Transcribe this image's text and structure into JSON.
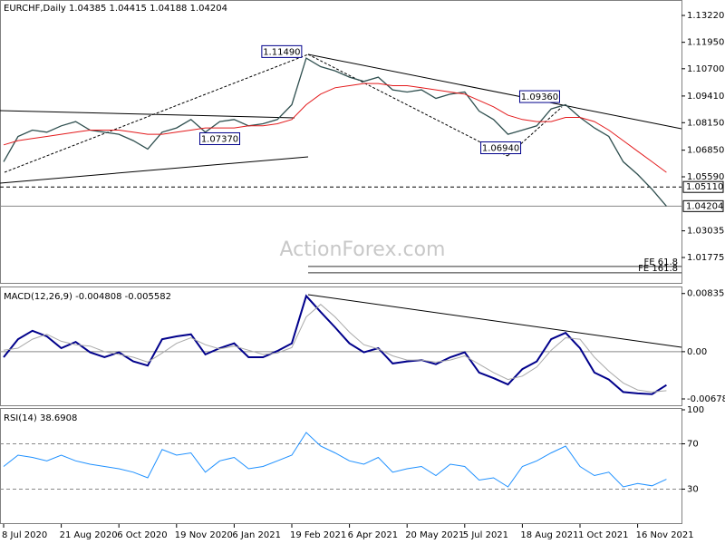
{
  "chart_data": [
    {
      "type": "line",
      "title": "EURCHF,Daily  1.04385 1.04415 1.04188 1.04204",
      "series": [
        {
          "color": "#2f4f4f",
          "values": [
            1.063,
            1.075,
            1.078,
            1.077,
            1.08,
            1.082,
            1.078,
            1.077,
            1.076,
            1.073,
            1.069,
            1.077,
            1.079,
            1.083,
            1.077,
            1.082,
            1.083,
            1.08,
            1.081,
            1.083,
            1.09,
            1.112,
            1.108,
            1.106,
            1.103,
            1.101,
            1.103,
            1.097,
            1.096,
            1.097,
            1.093,
            1.095,
            1.096,
            1.087,
            1.083,
            1.076,
            1.078,
            1.08,
            1.088,
            1.09,
            1.084,
            1.079,
            1.075,
            1.063,
            1.057,
            1.05,
            1.042
          ]
        },
        {
          "color": "#e31a1c",
          "values": [
            1.071,
            1.073,
            1.074,
            1.075,
            1.076,
            1.077,
            1.078,
            1.078,
            1.078,
            1.077,
            1.076,
            1.076,
            1.077,
            1.078,
            1.079,
            1.079,
            1.079,
            1.08,
            1.08,
            1.081,
            1.083,
            1.09,
            1.095,
            1.098,
            1.099,
            1.1,
            1.1,
            1.099,
            1.099,
            1.098,
            1.097,
            1.096,
            1.095,
            1.092,
            1.089,
            1.085,
            1.083,
            1.082,
            1.082,
            1.084,
            1.084,
            1.082,
            1.078,
            1.073,
            1.068,
            1.063,
            1.058
          ]
        }
      ],
      "ylim": [
        1.0066,
        1.1395
      ],
      "yticks": [
        {
          "value": 1.1322,
          "label": "1.13220"
        },
        {
          "value": 1.1195,
          "label": "1.11950"
        },
        {
          "value": 1.107,
          "label": "1.10700"
        },
        {
          "value": 1.0941,
          "label": "1.09410"
        },
        {
          "value": 1.0815,
          "label": "1.08150"
        },
        {
          "value": 1.0685,
          "label": "1.06850"
        },
        {
          "value": 1.0559,
          "label": "1.05590"
        },
        {
          "value": 1.03035,
          "label": "1.03035"
        },
        {
          "value": 1.01775,
          "label": "1.01775"
        }
      ],
      "grid": false,
      "hlines": [
        {
          "value": 1.0511,
          "label": "1.05110"
        },
        {
          "value": 1.04204,
          "label": "1.04204"
        }
      ],
      "fe_levels": [
        {
          "value": 1.0135,
          "label": "FE 61.8"
        },
        {
          "value": 1.0105,
          "label": "FE 161.8"
        }
      ],
      "annotations": [
        {
          "text": "1.11490",
          "x": 19.3,
          "y": 1.1149
        },
        {
          "text": "1.07370",
          "x": 15.0,
          "y": 1.0737
        },
        {
          "text": "1.06940",
          "x": 34.5,
          "y": 1.0694
        },
        {
          "text": "1.09360",
          "x": 37.2,
          "y": 1.0936
        }
      ],
      "watermark": "ActionForex.com"
    },
    {
      "type": "line",
      "title": "MACD(12,26,9) -0.004808 -0.005582",
      "series": [
        {
          "color": "#00008b",
          "values": [
            -0.0008,
            0.0018,
            0.003,
            0.0022,
            0.0005,
            0.0014,
            -0.0001,
            -0.0008,
            -0.0001,
            -0.0014,
            -0.002,
            0.0018,
            0.0022,
            0.0025,
            -0.0004,
            0.0005,
            0.0012,
            -0.0008,
            -0.0008,
            0.0001,
            0.0012,
            0.008,
            0.0057,
            0.0035,
            0.0012,
            -0.0001,
            0.0005,
            -0.0017,
            -0.0014,
            -0.0012,
            -0.0018,
            -0.0008,
            -0.0001,
            -0.003,
            -0.0038,
            -0.0047,
            -0.0025,
            -0.0014,
            0.0018,
            0.0027,
            0.0005,
            -0.003,
            -0.004,
            -0.0058,
            -0.006,
            -0.0061,
            -0.0048
          ]
        },
        {
          "color": "#a9a9a9",
          "values": [
            0.0002,
            0.0005,
            0.0018,
            0.0025,
            0.0015,
            0.001,
            0.0008,
            0.0,
            -0.0004,
            -0.0008,
            -0.0015,
            -0.0002,
            0.0012,
            0.002,
            0.001,
            0.0004,
            0.0008,
            0.0002,
            -0.0004,
            -0.0002,
            0.0006,
            0.005,
            0.0068,
            0.005,
            0.0028,
            0.001,
            0.0004,
            -0.0006,
            -0.0012,
            -0.0012,
            -0.0015,
            -0.0012,
            -0.0006,
            -0.0018,
            -0.003,
            -0.004,
            -0.0035,
            -0.0022,
            0.0002,
            0.002,
            0.0018,
            -0.0008,
            -0.0028,
            -0.0045,
            -0.0055,
            -0.0058,
            -0.0056
          ]
        }
      ],
      "ylim": [
        -0.0077,
        0.0091
      ],
      "yticks": [
        0.008353,
        {
          "value": 0,
          "label": "0.00"
        },
        -0.006788
      ],
      "grid": true
    },
    {
      "type": "line",
      "title": "RSI(14) 38.6908",
      "categories": [
        "8 Jul 2020",
        null,
        null,
        null,
        "21 Aug 2020",
        null,
        null,
        null,
        "6 Oct 2020",
        null,
        null,
        null,
        "19 Nov 2020",
        null,
        null,
        null,
        "6 Jan 2021",
        null,
        null,
        null,
        "19 Feb 2021",
        null,
        null,
        null,
        "6 Apr 2021",
        null,
        null,
        null,
        "20 May 2021",
        null,
        null,
        null,
        "5 Jul 2021",
        null,
        null,
        null,
        "18 Aug 2021",
        null,
        null,
        null,
        "1 Oct 2021",
        null,
        null,
        null,
        "16 Nov 2021",
        null,
        null
      ],
      "series": [
        {
          "color": "#1e90ff",
          "values": [
            50,
            60,
            58,
            55,
            60,
            55,
            52,
            50,
            48,
            45,
            40,
            65,
            60,
            62,
            45,
            55,
            58,
            48,
            50,
            55,
            60,
            80,
            68,
            62,
            55,
            52,
            58,
            45,
            48,
            50,
            42,
            52,
            50,
            38,
            40,
            32,
            50,
            55,
            62,
            68,
            50,
            42,
            45,
            32,
            35,
            33,
            38.6908
          ]
        }
      ],
      "ylim": [
        0,
        100
      ],
      "yticks": [
        100,
        70,
        30
      ],
      "grid": true
    }
  ]
}
